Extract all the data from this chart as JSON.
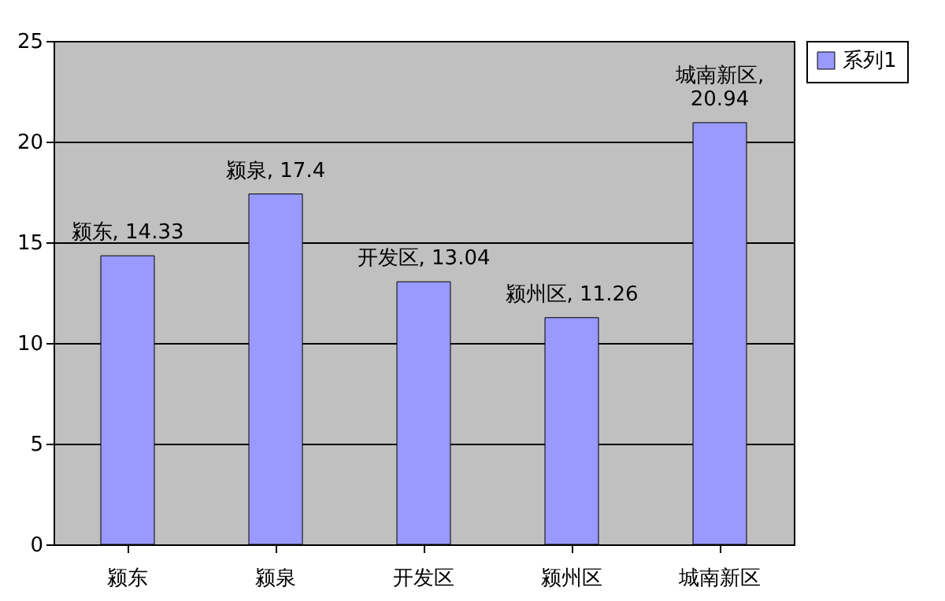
{
  "chart_data": {
    "type": "bar",
    "categories": [
      "颍东",
      "颍泉",
      "开发区",
      "颍州区",
      "城南新区"
    ],
    "series": [
      {
        "name": "系列1",
        "color": "#9999ff",
        "values": [
          14.33,
          17.4,
          13.04,
          11.26,
          20.94
        ],
        "value_labels": [
          "颍东, 14.33",
          "颍泉, 17.4",
          "开发区, 13.04",
          "颍州区, 11.26",
          "城南新区,\n20.94"
        ]
      }
    ],
    "ylim": [
      0,
      25
    ],
    "yticks": [
      0,
      5,
      10,
      15,
      20,
      25
    ],
    "grid": "y",
    "legend": "right"
  }
}
